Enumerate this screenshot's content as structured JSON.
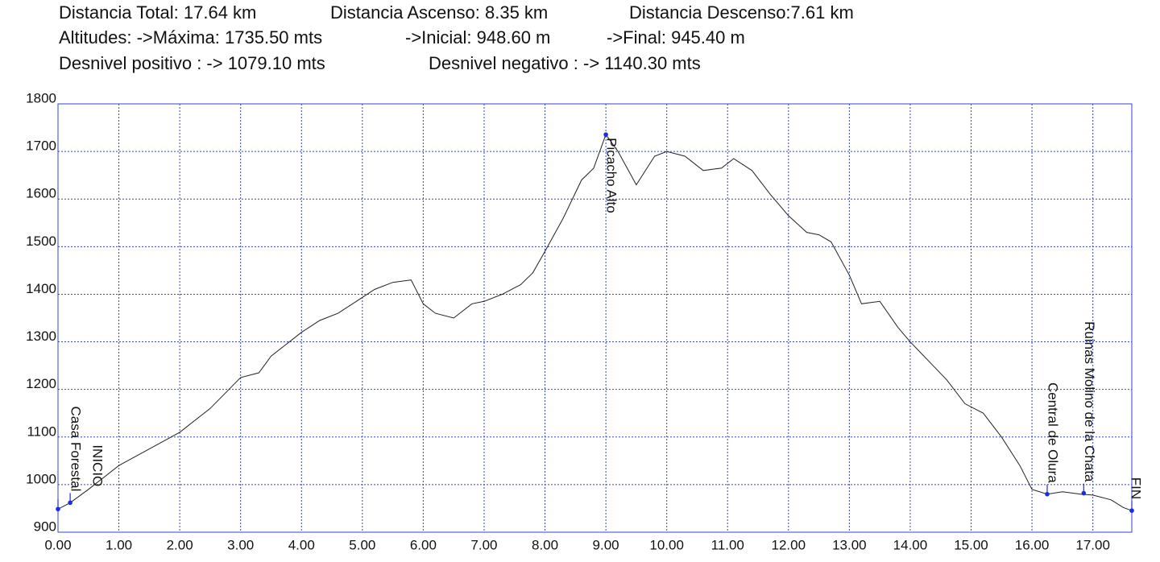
{
  "chart_data": {
    "type": "line",
    "stats": [
      [
        "Distancia Total: 17.64 km",
        "Distancia Ascenso: 8.35 km",
        "Distancia Descenso:7.61 km"
      ],
      [
        "Altitudes: ->Máxima: 1735.50 mts",
        "->Inicial: 948.60 m",
        "->Final: 945.40 m"
      ],
      [
        "Desnivel positivo : -> 1079.10 mts",
        "Desnivel negativo : -> 1140.30 mts"
      ]
    ],
    "xlim": [
      0,
      17.64
    ],
    "ylim": [
      900,
      1800
    ],
    "xticks": [
      {
        "value": 0,
        "label": "0.00"
      },
      {
        "value": 1,
        "label": "1.00"
      },
      {
        "value": 2,
        "label": "2.00"
      },
      {
        "value": 3,
        "label": "3.00"
      },
      {
        "value": 4,
        "label": "4.00"
      },
      {
        "value": 5,
        "label": "5.00"
      },
      {
        "value": 6,
        "label": "6.00"
      },
      {
        "value": 7,
        "label": "7.00"
      },
      {
        "value": 8,
        "label": "8.00"
      },
      {
        "value": 9,
        "label": "9.00"
      },
      {
        "value": 10,
        "label": "10.00"
      },
      {
        "value": 11,
        "label": "11.00"
      },
      {
        "value": 12,
        "label": "12.00"
      },
      {
        "value": 13,
        "label": "13.00"
      },
      {
        "value": 14,
        "label": "14.00"
      },
      {
        "value": 15,
        "label": "15.00"
      },
      {
        "value": 16,
        "label": "16.00"
      },
      {
        "value": 17,
        "label": "17.00"
      }
    ],
    "yticks": [
      900,
      1000,
      1100,
      1200,
      1300,
      1400,
      1500,
      1600,
      1700,
      1800
    ],
    "grid": true,
    "grid_color": "#3344cc",
    "frame_color": "#3344cc",
    "series": [
      {
        "color": "#222222",
        "x": [
          0,
          0.2,
          0.5,
          1.0,
          1.5,
          2.0,
          2.5,
          3.0,
          3.3,
          3.5,
          3.7,
          4.0,
          4.3,
          4.6,
          4.9,
          5.2,
          5.5,
          5.8,
          6.0,
          6.2,
          6.5,
          6.8,
          7.0,
          7.3,
          7.6,
          7.8,
          8.0,
          8.3,
          8.6,
          8.8,
          9.0,
          9.2,
          9.5,
          9.8,
          10.0,
          10.3,
          10.6,
          10.9,
          11.1,
          11.4,
          11.7,
          12.0,
          12.3,
          12.5,
          12.7,
          13.0,
          13.2,
          13.5,
          13.8,
          14.0,
          14.3,
          14.6,
          14.9,
          15.2,
          15.5,
          15.8,
          16.0,
          16.25,
          16.5,
          16.8,
          17.0,
          17.3,
          17.5,
          17.64
        ],
        "values": [
          948.6,
          962,
          990,
          1040,
          1075,
          1110,
          1160,
          1225,
          1235,
          1270,
          1290,
          1320,
          1345,
          1360,
          1385,
          1410,
          1425,
          1430,
          1380,
          1360,
          1350,
          1380,
          1385,
          1400,
          1420,
          1445,
          1490,
          1560,
          1640,
          1665,
          1735.5,
          1700,
          1630,
          1690,
          1700,
          1690,
          1660,
          1665,
          1685,
          1660,
          1610,
          1565,
          1530,
          1525,
          1510,
          1440,
          1380,
          1385,
          1330,
          1300,
          1260,
          1220,
          1170,
          1150,
          1100,
          1040,
          990,
          980,
          985,
          980,
          978,
          968,
          952,
          945.4
        ]
      }
    ],
    "marker_color": "#1a2ee0",
    "waypoints": [
      {
        "name": "INICIO",
        "x": 0,
        "value": 948.6
      },
      {
        "name": "Casa Forestal",
        "x": 0.2,
        "value": 962
      },
      {
        "name": "Picacho Alto",
        "x": 9.0,
        "value": 1735.5
      },
      {
        "name": "Central de Olura",
        "x": 16.25,
        "value": 980
      },
      {
        "name": "Ruinas Molino de la Chata",
        "x": 16.85,
        "value": 982
      },
      {
        "name": "FIN",
        "x": 17.64,
        "value": 945.4
      }
    ]
  }
}
